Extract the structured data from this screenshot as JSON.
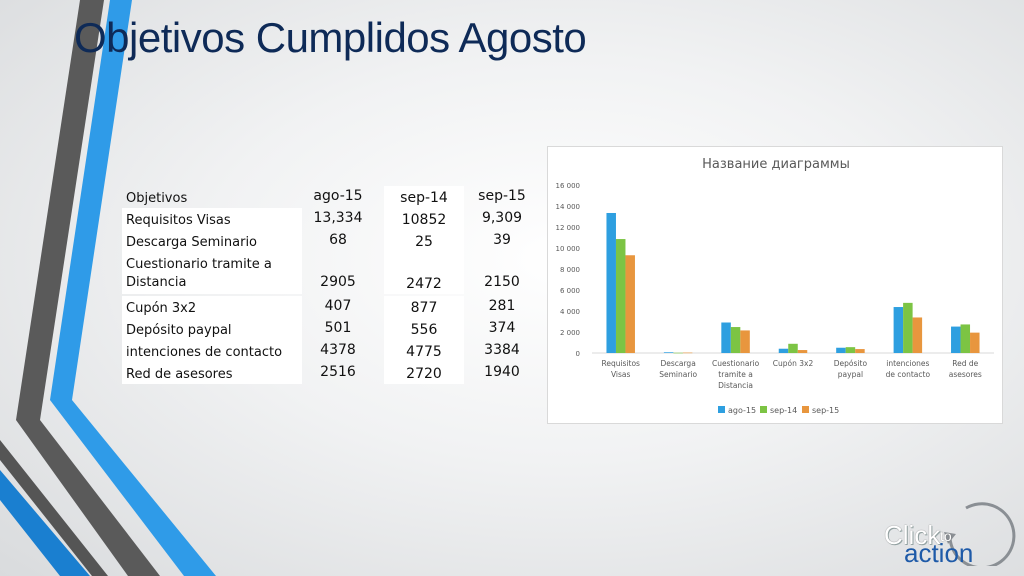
{
  "slide": {
    "title": "Objetivos Cumplidos Agosto"
  },
  "table": {
    "headers": [
      "Objetivos",
      "ago-15",
      "sep-14",
      "sep-15"
    ],
    "rows": [
      {
        "label": "Requisitos Visas",
        "ago15": "13,334",
        "sep14": "10852",
        "sep15": "9,309"
      },
      {
        "label": "Descarga Seminario",
        "ago15": "68",
        "sep14": "25",
        "sep15": "39"
      },
      {
        "label": "Cuestionario tramite a Distancia",
        "ago15": "2905",
        "sep14": "2472",
        "sep15": "2150"
      },
      {
        "label": "Cupón 3x2",
        "ago15": "407",
        "sep14": "877",
        "sep15": "281"
      },
      {
        "label": "Depósito paypal",
        "ago15": "501",
        "sep14": "556",
        "sep15": "374"
      },
      {
        "label": "intenciones de contacto",
        "ago15": "4378",
        "sep14": "4775",
        "sep15": "3384"
      },
      {
        "label": "Red de asesores",
        "ago15": "2516",
        "sep14": "2720",
        "sep15": "1940"
      }
    ]
  },
  "chart_data": {
    "type": "bar",
    "title": "Название диаграммы",
    "categories": [
      "Requisitos Visas",
      "Descarga Seminario",
      "Cuestionario tramite a Distancia",
      "Cupón 3x2",
      "Depósito paypal",
      "intenciones de contacto",
      "Red de asesores"
    ],
    "series": [
      {
        "name": "ago-15",
        "color": "#2e9fe0",
        "values": [
          13334,
          68,
          2905,
          407,
          501,
          4378,
          2516
        ]
      },
      {
        "name": "sep-14",
        "color": "#7cc444",
        "values": [
          10852,
          25,
          2472,
          877,
          556,
          4775,
          2720
        ]
      },
      {
        "name": "sep-15",
        "color": "#e8963e",
        "values": [
          9309,
          39,
          2150,
          281,
          374,
          3384,
          1940
        ]
      }
    ],
    "ylim": [
      0,
      16000
    ],
    "yticks": [
      "0",
      "2 000",
      "4 000",
      "6 000",
      "8 000",
      "10 000",
      "12 000",
      "14 000",
      "16 000"
    ],
    "xlabel": "",
    "ylabel": "",
    "grid": false,
    "legend": "bottom"
  },
  "logo": {
    "click": "Click",
    "to": "to",
    "action": "action"
  }
}
